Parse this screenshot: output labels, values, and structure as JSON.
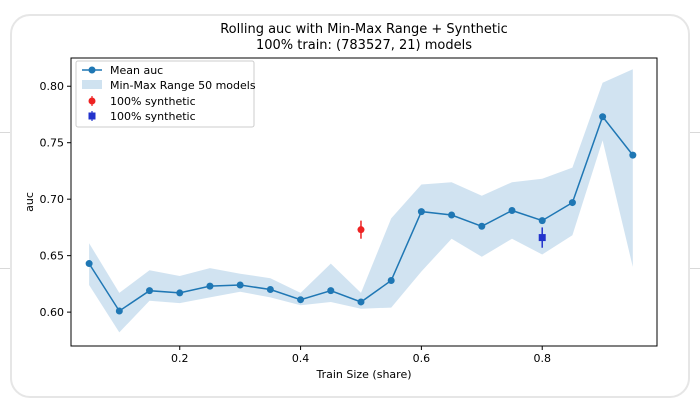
{
  "chart_data": {
    "type": "line",
    "title": "Rolling auc with Min-Max Range + Synthetic",
    "subtitle": "100% train: (783527, 21) models",
    "xlabel": "Train Size (share)",
    "ylabel": "auc",
    "xlim": [
      0.02,
      0.99
    ],
    "ylim": [
      0.57,
      0.825
    ],
    "xticks": [
      0.2,
      0.4,
      0.6,
      0.8
    ],
    "xtick_labels": [
      "0.2",
      "0.4",
      "0.6",
      "0.8"
    ],
    "yticks": [
      0.6,
      0.65,
      0.7,
      0.75,
      0.8
    ],
    "ytick_labels": [
      "0.60",
      "0.65",
      "0.70",
      "0.75",
      "0.80"
    ],
    "grid": false,
    "legend_position": "top-left",
    "series": [
      {
        "name": "Mean auc",
        "kind": "line",
        "color": "#1f77b4",
        "x": [
          0.05,
          0.1,
          0.15,
          0.2,
          0.25,
          0.3,
          0.35,
          0.4,
          0.45,
          0.5,
          0.55,
          0.6,
          0.65,
          0.7,
          0.75,
          0.8,
          0.85,
          0.9,
          0.95
        ],
        "values": [
          0.643,
          0.601,
          0.619,
          0.617,
          0.623,
          0.624,
          0.62,
          0.611,
          0.619,
          0.609,
          0.628,
          0.689,
          0.686,
          0.676,
          0.69,
          0.681,
          0.697,
          0.773,
          0.739
        ]
      },
      {
        "name": "Min-Max Range 50 models",
        "kind": "band",
        "color": "#cfe2f0",
        "x": [
          0.05,
          0.1,
          0.15,
          0.2,
          0.25,
          0.3,
          0.35,
          0.4,
          0.45,
          0.5,
          0.55,
          0.6,
          0.65,
          0.7,
          0.75,
          0.8,
          0.85,
          0.9,
          0.95
        ],
        "min": [
          0.624,
          0.582,
          0.61,
          0.608,
          0.613,
          0.618,
          0.613,
          0.606,
          0.609,
          0.603,
          0.604,
          0.636,
          0.665,
          0.649,
          0.665,
          0.651,
          0.668,
          0.752,
          0.64
        ],
        "max": [
          0.661,
          0.617,
          0.637,
          0.632,
          0.639,
          0.634,
          0.63,
          0.617,
          0.643,
          0.617,
          0.683,
          0.713,
          0.715,
          0.703,
          0.715,
          0.718,
          0.728,
          0.803,
          0.815
        ]
      },
      {
        "name": "100% synthetic",
        "kind": "errorbar",
        "marker": "circle",
        "color": "#ee2222",
        "x": [
          0.5
        ],
        "values": [
          0.673
        ],
        "err": [
          0.008
        ]
      },
      {
        "name": "100% synthetic",
        "kind": "errorbar",
        "marker": "square",
        "color": "#2233cc",
        "x": [
          0.8
        ],
        "values": [
          0.666
        ],
        "err": [
          0.009
        ]
      }
    ]
  }
}
